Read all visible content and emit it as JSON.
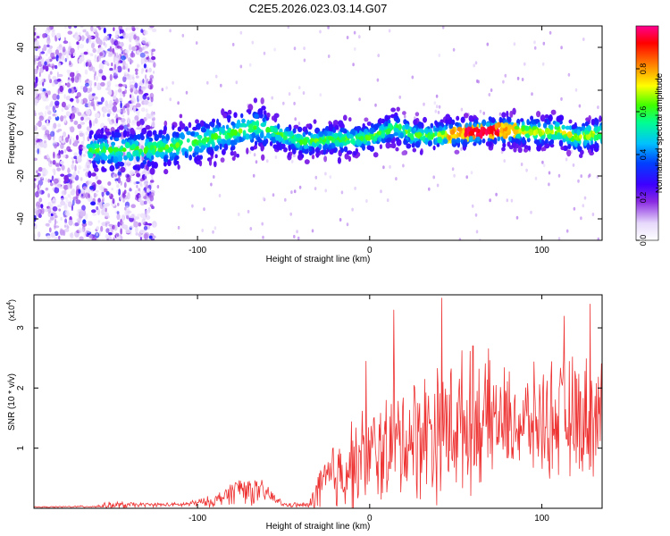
{
  "title": "C2E5.2026.023.03.14.G07",
  "chart_data": [
    {
      "type": "heatmap",
      "name": "spectrogram",
      "xlabel": "Height of straight line (km)",
      "ylabel": "Frequency (Hz)",
      "xlim": [
        -195,
        135
      ],
      "ylim": [
        -50,
        50
      ],
      "xticks": [
        -100,
        0,
        100
      ],
      "xtick_labels": [
        "-100",
        "0",
        "100"
      ],
      "yticks": [
        40,
        20,
        0,
        -20,
        -40
      ],
      "ytick_labels": [
        "40",
        "20",
        "0",
        "-20",
        "-40"
      ],
      "ridge": {
        "x": [
          -160,
          -140,
          -120,
          -100,
          -80,
          -65,
          -55,
          -40,
          -25,
          -10,
          0,
          10,
          15,
          25,
          40,
          55,
          70,
          80,
          90,
          100,
          110,
          120,
          135
        ],
        "y": [
          -8,
          -8,
          -7,
          -4,
          0,
          3,
          0,
          -4,
          -3,
          -3,
          -2,
          1,
          3,
          -1,
          -1,
          0,
          1,
          1,
          1,
          0,
          1,
          -2,
          0
        ]
      },
      "peak_region_km": [
        55,
        75
      ],
      "colorbar": {
        "label": "Normalized spectral amplitude",
        "range": [
          0,
          1
        ],
        "ticks": [
          0.0,
          0.2,
          0.4,
          0.6,
          0.8
        ],
        "tick_labels": [
          "0.0",
          "0.2",
          "0.4",
          "0.6",
          "0.8"
        ],
        "colors": [
          "#ffffff",
          "#d8c8f8",
          "#8a2be2",
          "#5a00ff",
          "#0030ff",
          "#00c0ff",
          "#00ff80",
          "#60ff00",
          "#ffff00",
          "#ff8000",
          "#ff0000",
          "#ff0080"
        ]
      }
    },
    {
      "type": "line",
      "name": "snr",
      "xlabel": "Height of straight line (km)",
      "ylabel": "SNR (10 * v/v)",
      "y_multiplier_label": "(x10",
      "y_multiplier_exp": "4",
      "xlim": [
        -195,
        135
      ],
      "ylim": [
        0,
        3.55
      ],
      "xticks": [
        -100,
        0,
        100
      ],
      "xtick_labels": [
        "-100",
        "0",
        "100"
      ],
      "yticks": [
        1,
        2,
        3
      ],
      "ytick_labels": [
        "1",
        "2",
        "3"
      ],
      "color": "#ee3333",
      "envelope": {
        "x": [
          -195,
          -160,
          -150,
          -130,
          -110,
          -90,
          -75,
          -70,
          -60,
          -50,
          -35,
          -30,
          -20,
          -10,
          0,
          10,
          20,
          30,
          40,
          50,
          60,
          70,
          80,
          90,
          100,
          110,
          120,
          135
        ],
        "mean": [
          0.02,
          0.03,
          0.05,
          0.06,
          0.06,
          0.12,
          0.35,
          0.3,
          0.25,
          0.06,
          0.05,
          0.3,
          0.55,
          0.75,
          0.85,
          1.0,
          1.15,
          1.25,
          1.35,
          1.4,
          1.45,
          1.5,
          1.45,
          1.4,
          1.45,
          1.5,
          1.5,
          1.55
        ],
        "amp": [
          0.01,
          0.02,
          0.08,
          0.04,
          0.04,
          0.12,
          0.3,
          0.3,
          0.2,
          0.04,
          0.06,
          0.5,
          0.8,
          0.9,
          1.0,
          1.1,
          1.2,
          1.3,
          1.4,
          1.4,
          1.3,
          1.2,
          1.0,
          1.0,
          1.1,
          1.2,
          1.2,
          1.2
        ]
      },
      "peaks": [
        {
          "x": 42,
          "y": 3.5
        },
        {
          "x": 14,
          "y": 3.3
        },
        {
          "x": 113,
          "y": 3.2
        },
        {
          "x": 128,
          "y": 3.4
        },
        {
          "x": -2,
          "y": 2.45
        },
        {
          "x": 60,
          "y": 2.7
        }
      ]
    }
  ]
}
